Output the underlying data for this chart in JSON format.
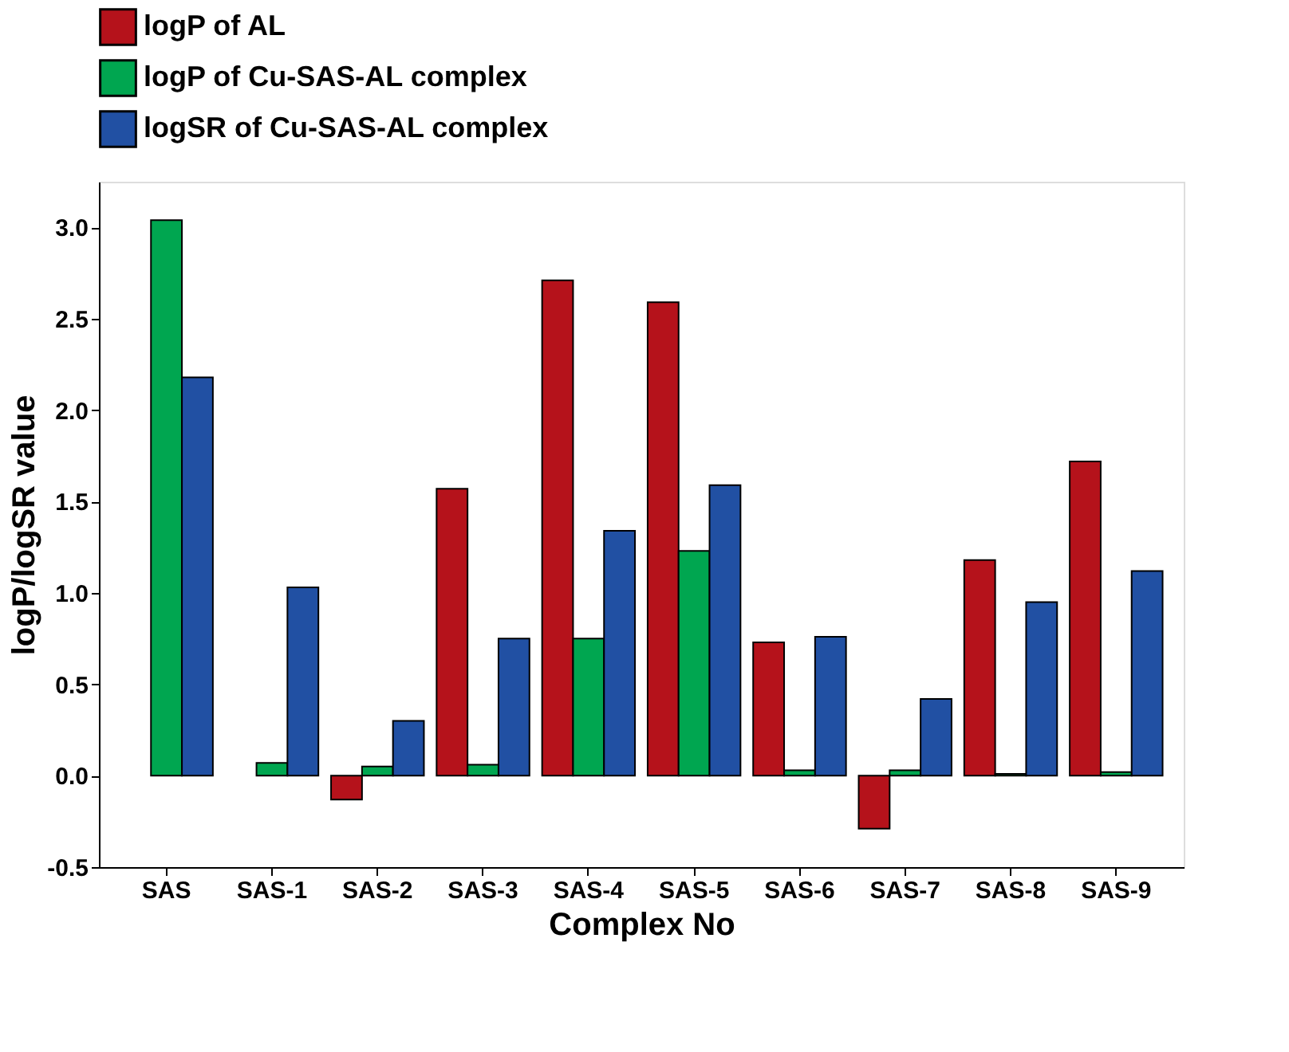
{
  "chart_data": {
    "type": "bar",
    "xlabel": "Complex No",
    "ylabel": "logP/logSR value",
    "categories": [
      "SAS",
      "SAS-1",
      "SAS-2",
      "SAS-3",
      "SAS-4",
      "SAS-5",
      "SAS-6",
      "SAS-7",
      "SAS-8",
      "SAS-9"
    ],
    "series": [
      {
        "name": "logP of AL",
        "color": "#b5121b",
        "values": [
          null,
          null,
          -0.13,
          1.57,
          2.71,
          2.59,
          0.73,
          -0.29,
          1.18,
          1.72
        ]
      },
      {
        "name": "logP of Cu-SAS-AL complex",
        "color": "#00a650",
        "values": [
          3.04,
          0.07,
          0.05,
          0.06,
          0.75,
          1.23,
          0.03,
          0.03,
          0.01,
          0.02
        ]
      },
      {
        "name": "logSR of Cu-SAS-AL complex",
        "color": "#2150a3",
        "values": [
          2.18,
          1.03,
          0.3,
          0.75,
          1.34,
          1.59,
          0.76,
          0.42,
          0.95,
          1.12
        ]
      }
    ],
    "ylim": [
      -0.5,
      3.25
    ],
    "yticks": [
      {
        "value": -0.5,
        "label": "-0.5"
      },
      {
        "value": 0,
        "label": "0.0"
      },
      {
        "value": 0.5,
        "label": "0.5"
      },
      {
        "value": 1,
        "label": "1.0"
      },
      {
        "value": 1.5,
        "label": "1.5"
      },
      {
        "value": 2,
        "label": "2.0"
      },
      {
        "value": 2.5,
        "label": "2.5"
      },
      {
        "value": 3,
        "label": "3.0"
      }
    ],
    "grid": false,
    "legend": "top"
  }
}
